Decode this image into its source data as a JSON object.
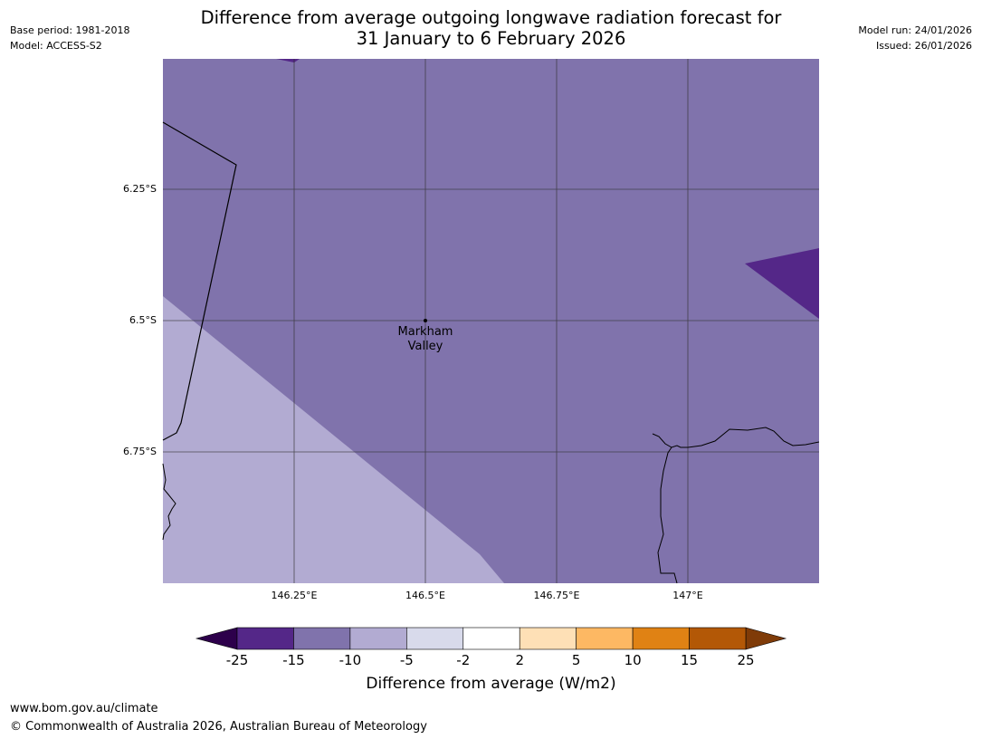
{
  "title": {
    "line1": "Difference from average outgoing longwave radiation forecast for",
    "line2": "31 January to 6 February 2026"
  },
  "meta_left": {
    "base_period": "Base period: 1981-2018",
    "model": "Model: ACCESS-S2"
  },
  "meta_right": {
    "model_run": "Model run: 24/01/2026",
    "issued": "Issued: 26/01/2026"
  },
  "map": {
    "lat_ticks": [
      "6.25°S",
      "6.5°S",
      "6.75°S"
    ],
    "lon_ticks": [
      "146.25°E",
      "146.5°E",
      "146.75°E",
      "147°E"
    ],
    "place": {
      "line1": "Markham",
      "line2": "Valley"
    },
    "colors": {
      "region_main": "#8073ac",
      "region_light": "#b2abd2",
      "region_dark": "#542788"
    }
  },
  "colorbar": {
    "labels": [
      "-25",
      "-15",
      "-10",
      "-5",
      "-2",
      "2",
      "5",
      "10",
      "15",
      "25"
    ],
    "colors": [
      "#542788",
      "#8073ac",
      "#b2abd2",
      "#d8daeb",
      "#ffffff",
      "#fee0b6",
      "#fdb863",
      "#e08214",
      "#b35806"
    ],
    "under_color": "#2d004b",
    "over_color": "#7f3b08",
    "label": "Difference from average (W/m2)"
  },
  "footer": {
    "url": "www.bom.gov.au/climate",
    "copyright": "© Commonwealth of Australia 2026, Australian Bureau of Meteorology"
  }
}
